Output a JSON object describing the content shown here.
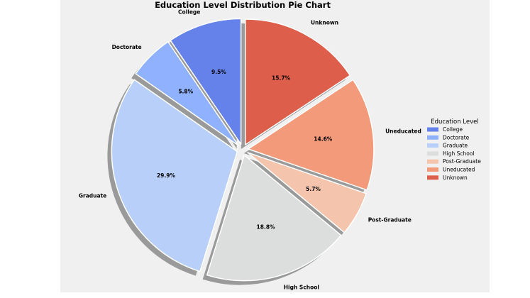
{
  "chart_data": {
    "type": "pie",
    "title": "Education Level Distribution Pie Chart",
    "categories": [
      "College",
      "Doctorate",
      "Graduate",
      "High School",
      "Post-Graduate",
      "Uneducated",
      "Unknown"
    ],
    "values": [
      9.5,
      5.8,
      29.9,
      18.8,
      5.7,
      14.6,
      15.7
    ],
    "percent_labels": [
      "9.5%",
      "5.8%",
      "29.9%",
      "18.8%",
      "5.7%",
      "14.6%",
      "15.7%"
    ],
    "colors": [
      "#6582ea",
      "#8fb1fe",
      "#b8d0f9",
      "#dcdddd",
      "#f5c4ac",
      "#f39a7b",
      "#dd5f4b"
    ],
    "exploded": true,
    "shadow": true,
    "start_angle_deg": 90,
    "direction": "counterclockwise",
    "legend": {
      "title": "Education Level",
      "placement": "center-right"
    }
  }
}
